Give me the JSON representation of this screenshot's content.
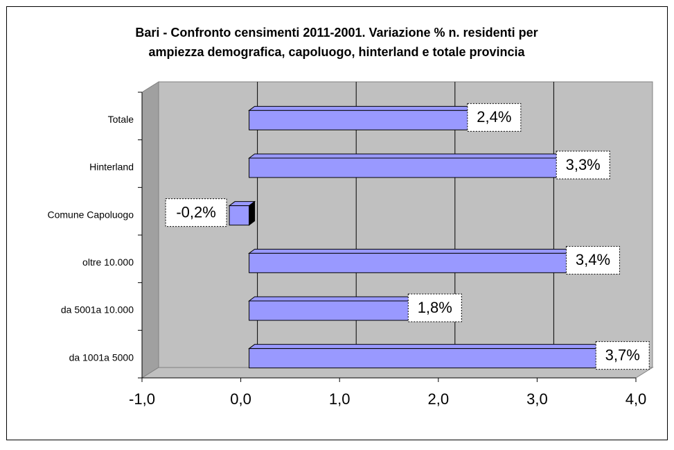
{
  "chart_data": {
    "type": "bar3d_horizontal",
    "title": "Bari - Confronto censimenti 2011-2001. Variazione % n. residenti per",
    "subtitle": "ampiezza demografica, capoluogo, hinterland e totale provincia",
    "categories": [
      "Totale",
      "Hinterland",
      "Comune Capoluogo",
      "oltre 10.000",
      "da 5001a 10.000",
      "da 1001a 5000"
    ],
    "values": [
      2.4,
      3.3,
      -0.2,
      3.4,
      1.8,
      3.7
    ],
    "value_labels": [
      "2,4%",
      "3,3%",
      "-0,2%",
      "3,4%",
      "1,8%",
      "3,7%"
    ],
    "color": "#9999ff",
    "xlim": [
      -1,
      4
    ],
    "xticks": [
      {
        "value": -1,
        "label": "-1,0"
      },
      {
        "value": 0,
        "label": "0,0"
      },
      {
        "value": 1,
        "label": "1,0"
      },
      {
        "value": 2,
        "label": "2,0"
      },
      {
        "value": 3,
        "label": "3,0"
      },
      {
        "value": 4,
        "label": "4,0"
      }
    ],
    "grid": true
  }
}
